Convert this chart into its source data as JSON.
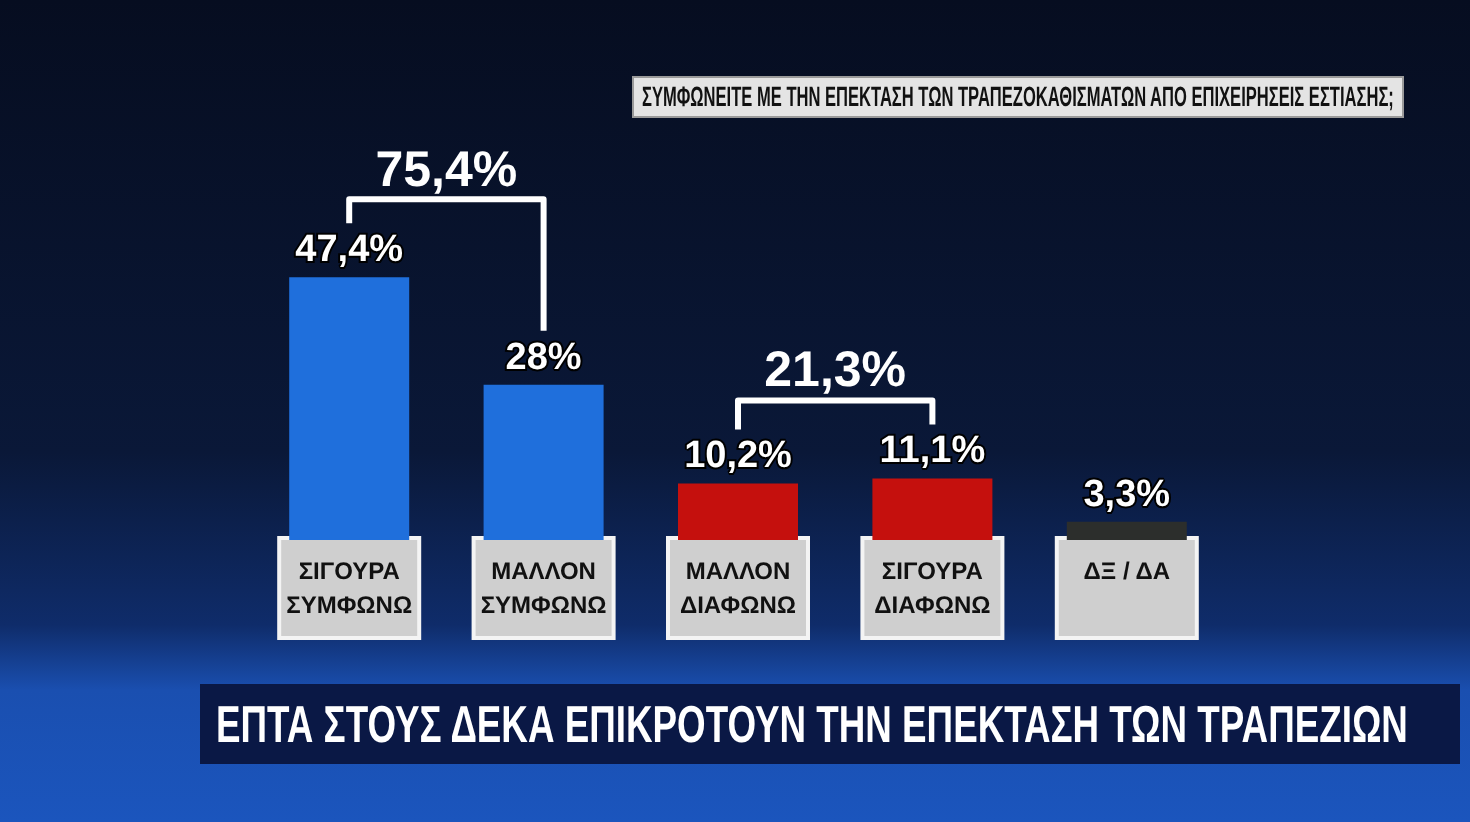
{
  "chart_data": {
    "type": "bar",
    "title": "ΣΥΜΦΩΝΕΙΤΕ ΜΕ ΤΗΝ ΕΠΕΚΤΑΣΗ ΤΩΝ ΤΡΑΠΕΖΟΚΑΘΙΣΜΑΤΩΝ ΑΠΟ ΕΠΙΧΕΙΡΗΣΕΙΣ ΕΣΤΙΑΣΗΣ;",
    "subtitle": "ΕΠΤΑ ΣΤΟΥΣ ΔΕΚΑ ΕΠΙΚΡΟΤΟΥΝ ΤΗΝ ΕΠΕΚΤΑΣΗ ΤΩΝ ΤΡΑΠΕΖΙΩΝ",
    "categories": [
      "ΣΙΓΟΥΡΑ ΣΥΜΦΩΝΩ",
      "ΜΑΛΛΟΝ ΣΥΜΦΩΝΩ",
      "ΜΑΛΛΟΝ ΔΙΑΦΩΝΩ",
      "ΣΙΓΟΥΡΑ ΔΙΑΦΩΝΩ",
      "ΔΞ / ΔΑ"
    ],
    "values": [
      47.4,
      28,
      10.2,
      11.1,
      3.3
    ],
    "colors": [
      "#1f6fdc",
      "#1f6fdc",
      "#c5100d",
      "#c5100d",
      "#2c2e2c"
    ],
    "value_labels": [
      "47,4%",
      "28%",
      "10,2%",
      "11,1%",
      "3,3%"
    ],
    "annotations": [
      "75,4%",
      "21,3%"
    ]
  }
}
